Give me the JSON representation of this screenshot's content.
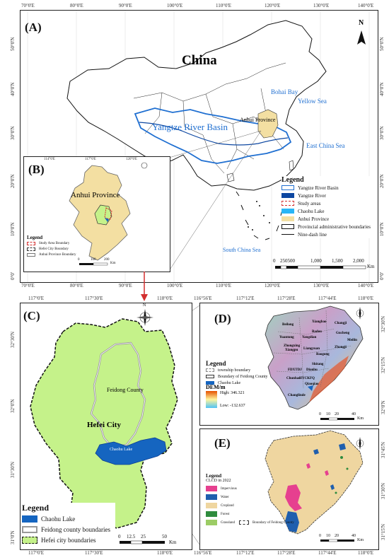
{
  "figure": {
    "panels": {
      "a": {
        "label": "(A)",
        "country": "China",
        "basin_label": "Yangtze River Basin",
        "province_label": "Anhui Province",
        "seas": [
          "Bohai Bay",
          "Yellow Sea",
          "East China Sea",
          "South China Sea"
        ],
        "top_ticks": [
          "70°0'E",
          "80°0'E",
          "90°0'E",
          "100°0'E",
          "110°0'E",
          "120°0'E",
          "130°0'E",
          "140°0'E"
        ],
        "bottom_ticks": [
          "70°0'E",
          "80°0'E",
          "90°0'E",
          "100°0'E",
          "110°0'E",
          "120°0'E",
          "130°0'E",
          "140°0'E"
        ],
        "left_ticks": [
          "50°0'N",
          "40°0'N",
          "30°0'N",
          "20°0'N",
          "10°0'N",
          "0°0'"
        ],
        "right_ticks": [
          "50°0'N",
          "40°0'N",
          "30°0'N",
          "20°0'N",
          "10°0'N",
          "0°0'"
        ],
        "legend_title": "Legend",
        "legend_items": [
          "Yangtze River Basin",
          "Yangtze River",
          "Study areas",
          "Chaohu Lake",
          "Anhui Province",
          "Provincial administrative boundaries",
          "Nine-dash line"
        ],
        "scale_ticks": [
          "0",
          "250500",
          "1,000",
          "1,500",
          "2,000"
        ],
        "scale_unit": "Km",
        "north": "N"
      },
      "b": {
        "label": "(B)",
        "province": "Anhui Province",
        "top_ticks": [
          "114°0'E",
          "117°0'E",
          "120°0'E"
        ],
        "legend_title": "Legend",
        "legend_items": [
          "Study Area Boundary",
          "Hefei City Boundary",
          "Anhui Province Boundary"
        ],
        "scale_ticks": [
          "0",
          "100",
          "200"
        ],
        "scale_unit": "Km"
      },
      "c": {
        "label": "(C)",
        "county": "Feidong County",
        "city": "Hefei City",
        "lake": "Chaohu Lake",
        "top_ticks": [
          "117°0'E",
          "117°30'E",
          "118°0'E"
        ],
        "bottom_ticks": [
          "117°0'E",
          "117°30'E",
          "118°0'E"
        ],
        "left_ticks": [
          "32°30'N",
          "32°0'N",
          "31°30'N",
          "31°0'N"
        ],
        "legend_title": "Legend",
        "legend_items": [
          "Chaohu Lake",
          "Feidong county boundaries",
          "Hefei city boundaries"
        ],
        "scale_ticks": [
          "0",
          "12.5",
          "25",
          "50"
        ],
        "scale_unit": "Km",
        "north": "N"
      },
      "d": {
        "label": "(D)",
        "towns": [
          "Beilong",
          "Xiangbao",
          "Changji",
          "Badou",
          "Gucheng",
          "Yuantong",
          "Yangdian",
          "Zhongxing",
          "Xiangpu",
          "Liangyuan",
          "Baogong",
          "Zhangji",
          "Meilin",
          "Shitang",
          "Dianbu",
          "FDXTDJ",
          "Chunhao",
          "Qiaoqiao",
          "HYCKFQ",
          "Changlinde"
        ],
        "top_ticks": [
          "116°56'E",
          "117°12'E",
          "117°28'E",
          "117°44'E",
          "118°0'E"
        ],
        "right_ticks": [
          "32°30'N",
          "32°15'N",
          "32°0'N"
        ],
        "legend_title": "Legend",
        "legend_items": [
          "township boundary",
          "Boundary of Feidong County",
          "Chaohu Lake"
        ],
        "dem_title": "DEM/m",
        "dem_high": "High: 346.321",
        "dem_low": "Low: -132.637",
        "scale_ticks": [
          "0",
          "10",
          "20",
          "40"
        ],
        "scale_unit": "Km"
      },
      "e": {
        "label": "(E)",
        "bottom_ticks": [
          "116°56'E",
          "117°12'E",
          "117°28'E",
          "117°44'E",
          "118°0'E"
        ],
        "right_ticks": [
          "31°45'N",
          "31°30'N",
          "31°15'N"
        ],
        "legend_title": "Legend",
        "legend_subtitle": "CLCD in 2022",
        "legend_items": [
          "Impervious",
          "Water",
          "Cropland",
          "Forest",
          "Grassland"
        ],
        "boundary_item": "Boundary of Feidong County",
        "scale_ticks": [
          "0",
          "10",
          "20",
          "40"
        ],
        "scale_unit": "Km"
      }
    },
    "colors": {
      "basin": "#1f6fd1",
      "province_fill": "#f3dfa2",
      "lake": "#1565c0",
      "hefei_fill": "#c5f28a",
      "study_red": "#d32f2f",
      "impervious": "#e6408f",
      "cropland": "#efd6a0",
      "forest": "#2e8b3d",
      "grassland": "#9ccc65"
    }
  }
}
